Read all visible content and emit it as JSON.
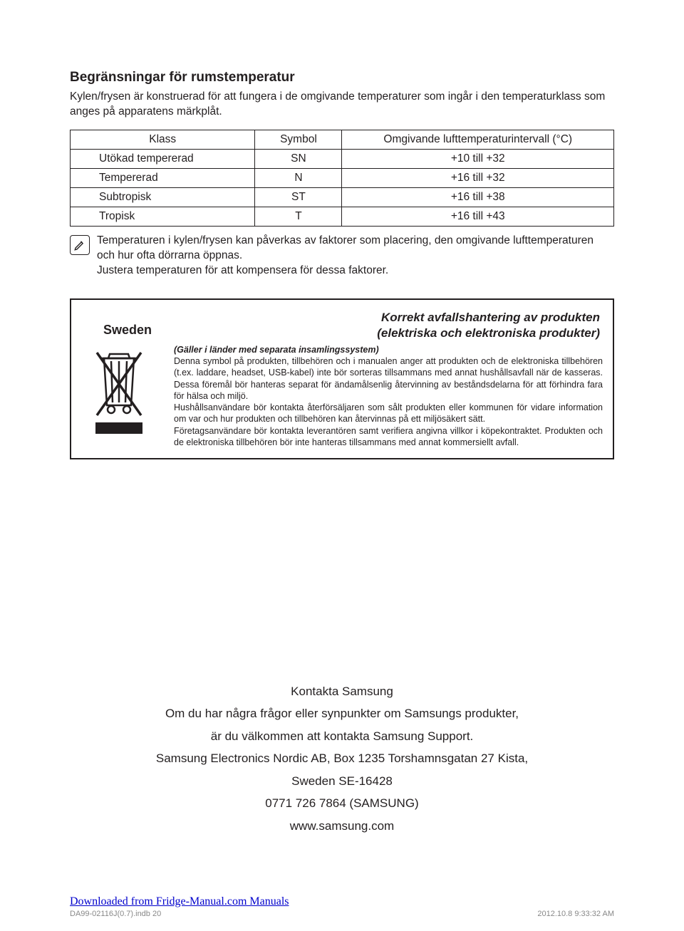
{
  "section": {
    "title": "Begränsningar för rumstemperatur",
    "intro": "Kylen/frysen är konstruerad för att fungera i de omgivande temperaturer som ingår i den temperaturklass som anges på apparatens märkplåt."
  },
  "table": {
    "headers": {
      "klass": "Klass",
      "symbol": "Symbol",
      "range": "Omgivande lufttemperaturintervall (°C)"
    },
    "rows": [
      {
        "klass": "Utökad tempererad",
        "symbol": "SN",
        "range": "+10 till +32"
      },
      {
        "klass": "Tempererad",
        "symbol": "N",
        "range": "+16 till +32"
      },
      {
        "klass": "Subtropisk",
        "symbol": "ST",
        "range": "+16 till +38"
      },
      {
        "klass": "Tropisk",
        "symbol": "T",
        "range": "+16 till +43"
      }
    ],
    "col_widths": {
      "klass": "34%",
      "symbol": "16%",
      "range": "50%"
    }
  },
  "note": {
    "line1": "Temperaturen i kylen/frysen kan påverkas av faktorer som placering, den omgivande lufttemperaturen och hur ofta dörrarna öppnas.",
    "line2": "Justera temperaturen för att kompensera för dessa faktorer."
  },
  "disposal": {
    "sweden": "Sweden",
    "heading_l1": "Korrekt avfallshantering av produkten",
    "heading_l2": "(elektriska och elektroniska produkter)",
    "applies": "(Gäller i länder med separata insamlingssystem)",
    "body": "Denna symbol på produkten, tillbehören och i manualen anger att produkten och de elektroniska tillbehören (t.ex. laddare, headset, USB-kabel) inte bör sorteras tillsammans med annat hushållsavfall när de kasseras. Dessa föremål bör hanteras separat för ändamålsenlig återvinning av beståndsdelarna för att förhindra fara för hälsa och miljö.\nHushållsanvändare bör kontakta återförsäljaren som sålt produkten eller kommunen för vidare information om var och hur produkten och tillbehören kan återvinnas på ett miljösäkert sätt.\nFöretagsanvändare bör kontakta leverantören samt verifiera angivna villkor i köpekontraktet. Produkten och de elektroniska tillbehören bör inte hanteras tillsammans med annat kommersiellt avfall."
  },
  "contact": {
    "l1": "Kontakta Samsung",
    "l2": "Om du har några frågor eller synpunkter om Samsungs produkter,",
    "l3": "är du välkommen att kontakta Samsung Support.",
    "l4": "Samsung Electronics Nordic AB, Box 1235 Torshamnsgatan 27 Kista,",
    "l5": "Sweden SE-16428",
    "l6": "0771 726 7864 (SAMSUNG)",
    "l7": "www.samsung.com"
  },
  "footer": {
    "download": "Downloaded from Fridge-Manual.com Manuals",
    "file": "DA99-02116J(0.7).indb   20",
    "timestamp": "2012.10.8   9:33:32 AM"
  },
  "colors": {
    "text": "#231f20",
    "link": "#0000cc",
    "footer_gray": "#888888"
  }
}
